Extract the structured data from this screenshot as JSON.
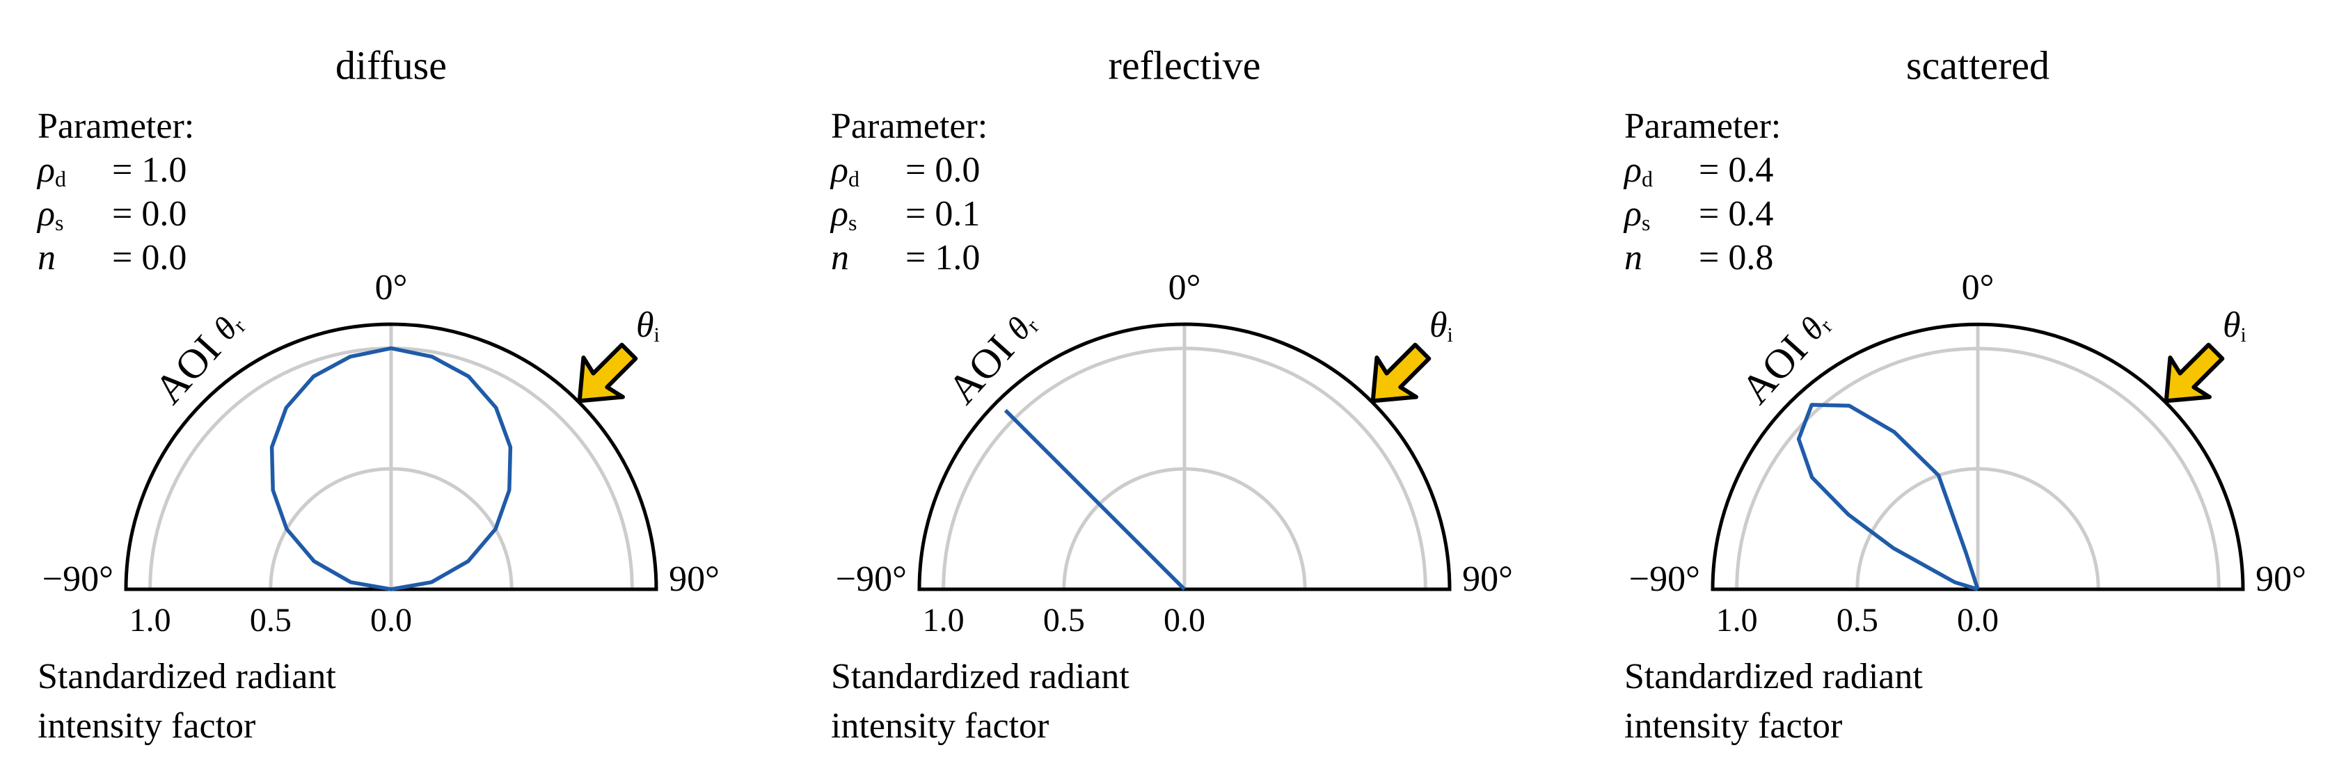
{
  "chart_data": [
    {
      "type": "polar",
      "title": "diffuse",
      "parameter_heading": "Parameter:",
      "parameters": [
        {
          "symbol": "ρ",
          "subscript": "d",
          "text": "= 1.0"
        },
        {
          "symbol": "ρ",
          "subscript": "s",
          "text": "= 0.0"
        },
        {
          "symbol": "n",
          "text": "= 0.0"
        }
      ],
      "angle_label": "AOI",
      "angle_symbol": "θ",
      "angle_subscript": "r",
      "incidence_symbol": "θ",
      "incidence_subscript": "i",
      "xlim": [
        -90,
        90
      ],
      "xticks": [
        {
          "value": -90,
          "label": "−90°"
        },
        {
          "value": 0,
          "label": "0°"
        },
        {
          "value": 90,
          "label": "90°"
        }
      ],
      "ylim": [
        0,
        1.1
      ],
      "yticks": [
        {
          "value": 1,
          "label": "1.0"
        },
        {
          "value": 0.5,
          "label": "0.5"
        },
        {
          "value": 0,
          "label": "0.0"
        }
      ],
      "ylabel": [
        "Standardized radiant",
        "intensity factor"
      ],
      "color": "#1f5ba8",
      "x": [
        -90,
        -80,
        -70,
        -60,
        -50,
        -40,
        -30,
        -20,
        -10,
        0,
        10,
        20,
        30,
        40,
        50,
        60,
        70,
        80,
        90
      ],
      "values": [
        0,
        0.17,
        0.34,
        0.5,
        0.64,
        0.77,
        0.87,
        0.94,
        0.98,
        1.0,
        0.98,
        0.94,
        0.87,
        0.77,
        0.64,
        0.5,
        0.34,
        0.17,
        0
      ]
    },
    {
      "type": "polar",
      "title": "reflective",
      "parameter_heading": "Parameter:",
      "parameters": [
        {
          "symbol": "ρ",
          "subscript": "d",
          "text": "= 0.0"
        },
        {
          "symbol": "ρ",
          "subscript": "s",
          "text": "= 0.1"
        },
        {
          "symbol": "n",
          "text": "= 1.0"
        }
      ],
      "angle_label": "AOI",
      "angle_symbol": "θ",
      "angle_subscript": "r",
      "incidence_symbol": "θ",
      "incidence_subscript": "i",
      "xlim": [
        -90,
        90
      ],
      "xticks": [
        {
          "value": -90,
          "label": "−90°"
        },
        {
          "value": 0,
          "label": "0°"
        },
        {
          "value": 90,
          "label": "90°"
        }
      ],
      "ylim": [
        0,
        1.1
      ],
      "yticks": [
        {
          "value": 1,
          "label": "1.0"
        },
        {
          "value": 0.5,
          "label": "0.5"
        },
        {
          "value": 0,
          "label": "0.0"
        }
      ],
      "ylabel": [
        "Standardized radiant",
        "intensity factor"
      ],
      "color": "#1f5ba8",
      "x": [
        -45,
        -45
      ],
      "values": [
        1.05,
        0
      ]
    },
    {
      "type": "polar",
      "title": "scattered",
      "parameter_heading": "Parameter:",
      "parameters": [
        {
          "symbol": "ρ",
          "subscript": "d",
          "text": "= 0.4"
        },
        {
          "symbol": "ρ",
          "subscript": "s",
          "text": "= 0.4"
        },
        {
          "symbol": "n",
          "text": "= 0.8"
        }
      ],
      "angle_label": "AOI",
      "angle_symbol": "θ",
      "angle_subscript": "r",
      "incidence_symbol": "θ",
      "incidence_subscript": "i",
      "xlim": [
        -90,
        90
      ],
      "xticks": [
        {
          "value": -90,
          "label": "−90°"
        },
        {
          "value": 0,
          "label": "0°"
        },
        {
          "value": 90,
          "label": "90°"
        }
      ],
      "ylim": [
        0,
        1.1
      ],
      "yticks": [
        {
          "value": 1,
          "label": "1.0"
        },
        {
          "value": 0.5,
          "label": "0.5"
        },
        {
          "value": 0,
          "label": "0.0"
        }
      ],
      "ylabel": [
        "Standardized radiant",
        "intensity factor"
      ],
      "color": "#1f5ba8",
      "x": [
        0,
        -18,
        -19,
        -28,
        -35,
        -42,
        -50,
        -56,
        -60,
        -64,
        -73,
        0
      ],
      "values": [
        0,
        0.16,
        0.5,
        0.74,
        0.93,
        1.03,
        0.97,
        0.83,
        0.62,
        0.39,
        0.1,
        0
      ]
    }
  ]
}
